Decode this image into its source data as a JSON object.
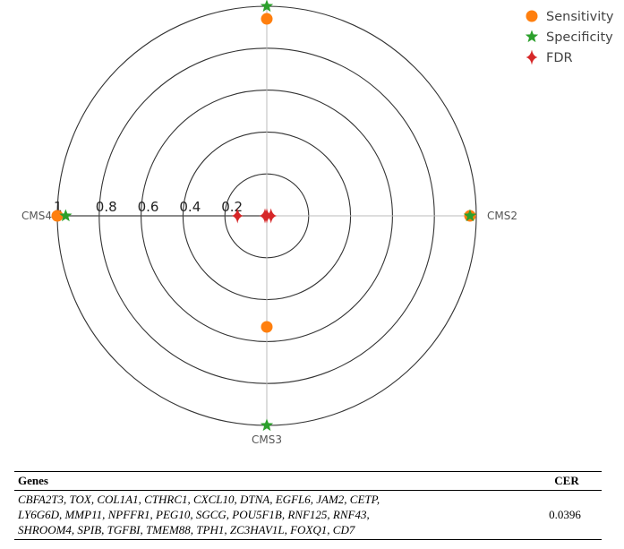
{
  "chart_data": {
    "type": "polar-scatter",
    "radial_ticks": [
      "0.2",
      "0.4",
      "0.6",
      "0.8",
      "1"
    ],
    "radial_range": [
      0,
      1
    ],
    "categories": [
      {
        "name": "",
        "angle_deg": 90
      },
      {
        "name": "CMS2",
        "angle_deg": 0
      },
      {
        "name": "CMS3",
        "angle_deg": 270
      },
      {
        "name": "CMS4",
        "angle_deg": 180
      }
    ],
    "series": [
      {
        "name": "Sensitivity",
        "marker": "circle",
        "color": "#ff7f0e",
        "points": [
          {
            "angle_deg": 90,
            "r": 0.94
          },
          {
            "angle_deg": 0,
            "r": 0.97
          },
          {
            "angle_deg": 270,
            "r": 0.53
          },
          {
            "angle_deg": 180,
            "r": 1.0
          }
        ]
      },
      {
        "name": "Specificity",
        "marker": "star",
        "color": "#2ca02c",
        "points": [
          {
            "angle_deg": 90,
            "r": 1.0
          },
          {
            "angle_deg": 0,
            "r": 0.97
          },
          {
            "angle_deg": 270,
            "r": 1.0
          },
          {
            "angle_deg": 180,
            "r": 0.96
          }
        ]
      },
      {
        "name": "FDR",
        "marker": "diamond",
        "color": "#d62728",
        "points": [
          {
            "angle_deg": 90,
            "r": 0.0
          },
          {
            "angle_deg": 0,
            "r": 0.02
          },
          {
            "angle_deg": 270,
            "r": 0.0
          },
          {
            "angle_deg": 180,
            "r": 0.14
          }
        ]
      }
    ],
    "legend_position": "top-right"
  },
  "table": {
    "headers": [
      "Genes",
      "CER"
    ],
    "rows": [
      {
        "genes_lines": [
          "CBFA2T3, TOX, COL1A1, CTHRC1, CXCL10, DTNA, EGFL6, JAM2, CETP,",
          "LY6G6D, MMP11, NPFFR1, PEG10, SGCG, POU5F1B, RNF125, RNF43,",
          "SHROOM4, SPIB, TGFBI, TMEM88, TPH1, ZC3HAV1L, FOXQ1, CD7"
        ],
        "cer": "0.0396"
      }
    ]
  }
}
